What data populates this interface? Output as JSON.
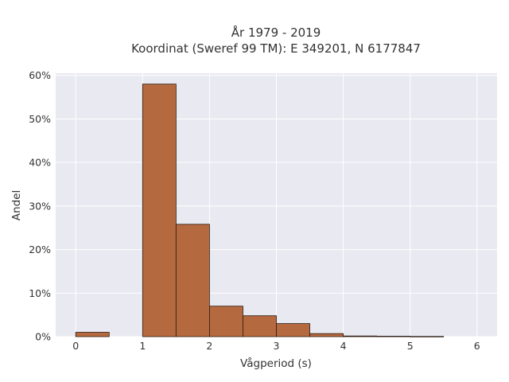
{
  "chart_data": {
    "type": "bar",
    "title_lines": [
      "År 1979 - 2019",
      "Koordinat (Sweref 99 TM): E 349201, N 6177847"
    ],
    "xlabel": "Vågperiod (s)",
    "ylabel": "Andel",
    "x_ticks": [
      0,
      1,
      2,
      3,
      4,
      5,
      6
    ],
    "x_tick_labels": [
      "0",
      "1",
      "2",
      "3",
      "4",
      "5",
      "6"
    ],
    "y_ticks": [
      0,
      10,
      20,
      30,
      40,
      50,
      60
    ],
    "y_tick_labels": [
      "0%",
      "10%",
      "20%",
      "30%",
      "40%",
      "50%",
      "60%"
    ],
    "xlim": [
      -0.3,
      6.3
    ],
    "ylim": [
      0,
      60.5
    ],
    "bin_width": 0.5,
    "bins": [
      {
        "x_start": 0.0,
        "x_end": 0.5,
        "value": 1.0
      },
      {
        "x_start": 0.5,
        "x_end": 1.0,
        "value": 0.0
      },
      {
        "x_start": 1.0,
        "x_end": 1.5,
        "value": 58.0
      },
      {
        "x_start": 1.5,
        "x_end": 2.0,
        "value": 25.8
      },
      {
        "x_start": 2.0,
        "x_end": 2.5,
        "value": 7.0
      },
      {
        "x_start": 2.5,
        "x_end": 3.0,
        "value": 4.8
      },
      {
        "x_start": 3.0,
        "x_end": 3.5,
        "value": 3.0
      },
      {
        "x_start": 3.5,
        "x_end": 4.0,
        "value": 0.7
      },
      {
        "x_start": 4.0,
        "x_end": 4.5,
        "value": 0.15
      },
      {
        "x_start": 4.5,
        "x_end": 5.0,
        "value": 0.1
      },
      {
        "x_start": 5.0,
        "x_end": 5.5,
        "value": 0.05
      }
    ],
    "grid": true,
    "colors": {
      "bar_fill": "#b5693f",
      "bar_stroke": "#2b1a10",
      "plot_bg": "#e9e9f1",
      "grid": "#ffffff",
      "text": "#333333"
    }
  }
}
